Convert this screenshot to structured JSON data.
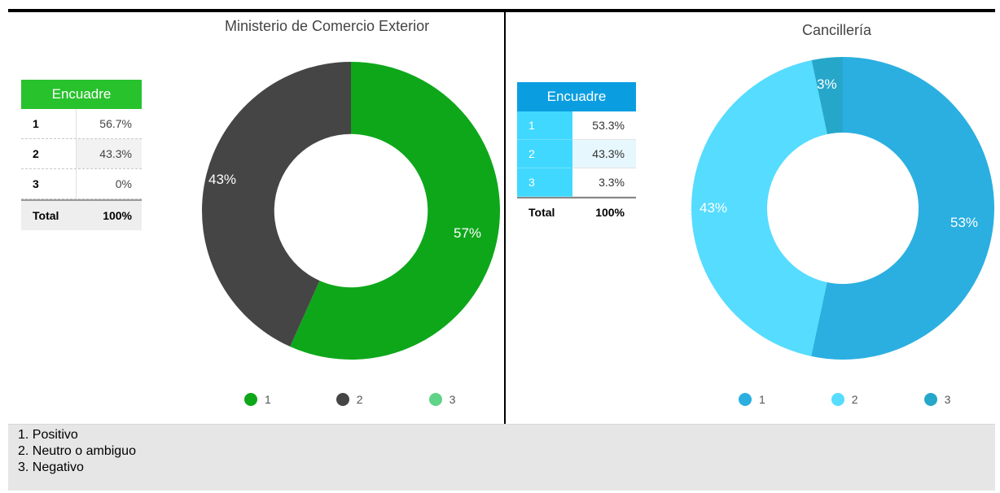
{
  "chart_data": [
    {
      "type": "pie",
      "title": "Ministerio de Comercio Exterior",
      "categories": [
        "1",
        "2",
        "3"
      ],
      "values": [
        56.7,
        43.3,
        0
      ],
      "slice_labels": [
        "57%",
        "43%",
        ""
      ],
      "colors": [
        "#0ea71a",
        "#454545",
        "#5fd387"
      ],
      "legend": [
        "1",
        "2",
        "3"
      ],
      "legend_position": "bottom"
    },
    {
      "type": "pie",
      "title": "Cancillería",
      "categories": [
        "1",
        "2",
        "3"
      ],
      "values": [
        53.3,
        43.3,
        3.3
      ],
      "slice_labels": [
        "53%",
        "43%",
        "3%"
      ],
      "colors": [
        "#2bafe1",
        "#55dcff",
        "#26a7c9"
      ],
      "legend": [
        "1",
        "2",
        "3"
      ],
      "legend_position": "bottom"
    }
  ],
  "tables": [
    {
      "header": "Encuadre",
      "rows": [
        {
          "key": "1",
          "value": "56.7%"
        },
        {
          "key": "2",
          "value": "43.3%"
        },
        {
          "key": "3",
          "value": "0%"
        }
      ],
      "total": {
        "key": "Total",
        "value": "100%"
      }
    },
    {
      "header": "Encuadre",
      "rows": [
        {
          "key": "1",
          "value": "53.3%"
        },
        {
          "key": "2",
          "value": "43.3%"
        },
        {
          "key": "3",
          "value": "3.3%"
        }
      ],
      "total": {
        "key": "Total",
        "value": "100%"
      }
    }
  ],
  "notes": [
    "1. Positivo",
    "2. Neutro o ambiguo",
    "3. Negativo"
  ]
}
